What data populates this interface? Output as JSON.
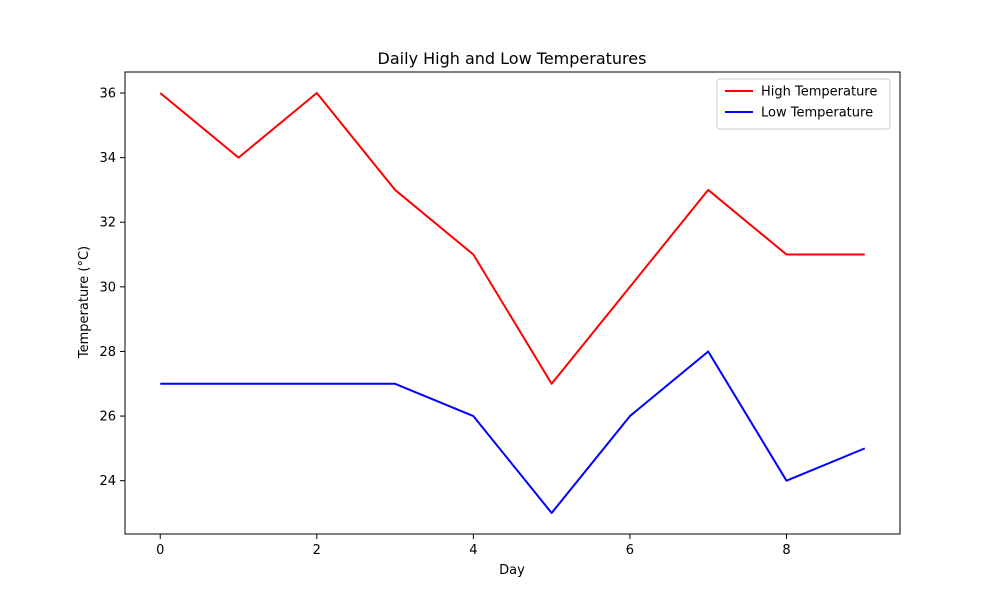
{
  "chart_data": {
    "type": "line",
    "title": "Daily High and Low Temperatures",
    "xlabel": "Day",
    "ylabel": "Temperature (°C)",
    "x": [
      0,
      1,
      2,
      3,
      4,
      5,
      6,
      7,
      8,
      9
    ],
    "series": [
      {
        "name": "High Temperature",
        "color": "#ff0000",
        "values": [
          36,
          34,
          36,
          33,
          31,
          27,
          30,
          33,
          31,
          31
        ]
      },
      {
        "name": "Low Temperature",
        "color": "#0000ff",
        "values": [
          27,
          27,
          27,
          27,
          26,
          23,
          26,
          28,
          24,
          25
        ]
      }
    ],
    "xlim": [
      -0.45,
      9.45
    ],
    "ylim": [
      22.35,
      36.65
    ],
    "xticks": [
      0,
      2,
      4,
      6,
      8
    ],
    "yticks": [
      24,
      26,
      28,
      30,
      32,
      34,
      36
    ],
    "xtick_labels": [
      "0",
      "2",
      "4",
      "6",
      "8"
    ],
    "ytick_labels": [
      "24",
      "26",
      "28",
      "30",
      "32",
      "34",
      "36"
    ],
    "grid": false,
    "legend_position": "top-right"
  }
}
